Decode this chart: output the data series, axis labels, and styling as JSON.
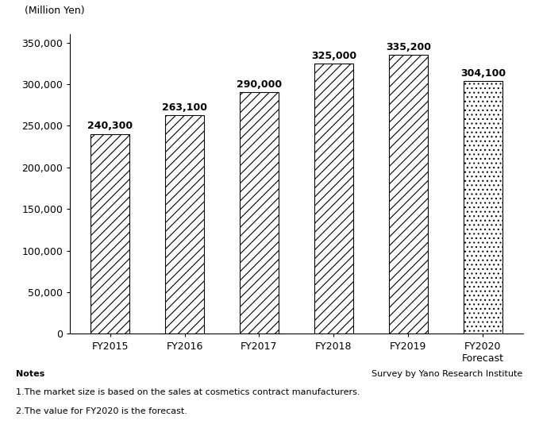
{
  "categories": [
    "FY2015",
    "FY2016",
    "FY2017",
    "FY2018",
    "FY2019",
    "FY2020\nForecast"
  ],
  "values": [
    240300,
    263100,
    290000,
    325000,
    335200,
    304100
  ],
  "labels": [
    "240,300",
    "263,100",
    "290,000",
    "325,000",
    "335,200",
    "304,100"
  ],
  "hatch_styles": [
    "///",
    "///",
    "///",
    "///",
    "///",
    "..."
  ],
  "bar_color": "#ffffff",
  "bar_edgecolor": "#000000",
  "ylim": [
    0,
    360000
  ],
  "yticks": [
    0,
    50000,
    100000,
    150000,
    200000,
    250000,
    300000,
    350000
  ],
  "ytick_labels": [
    "0",
    "50,000",
    "100,000",
    "150,000",
    "200,000",
    "250,000",
    "300,000",
    "350,000"
  ],
  "ylabel_top": "(Million Yen)",
  "note_line0": "Notes",
  "note_line1": "1.The market size is based on the sales at cosmetics contract manufacturers.",
  "note_line2": "2.The value for FY2020 is the forecast.",
  "note_right": "Survey by Yano Research Institute",
  "label_fontsize": 9,
  "tick_fontsize": 9,
  "note_fontsize": 8
}
